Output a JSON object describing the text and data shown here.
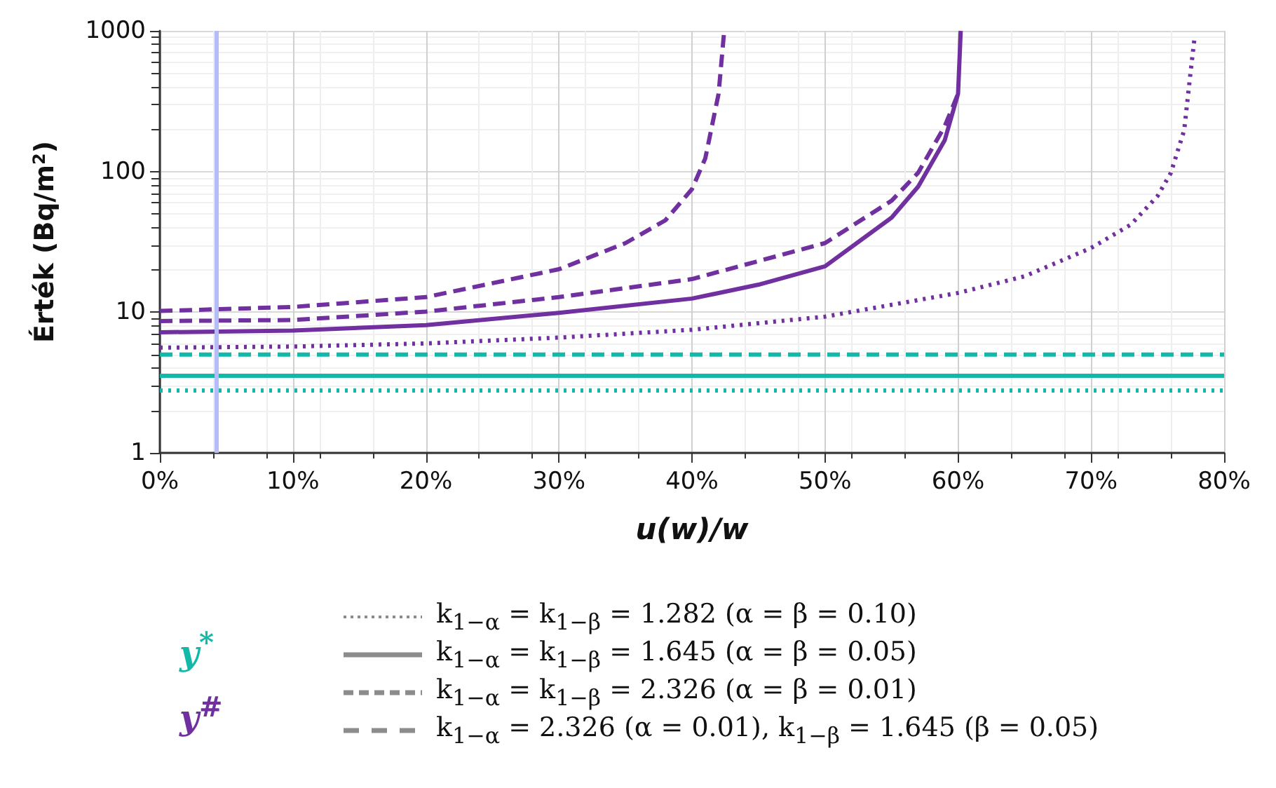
{
  "chart_data": {
    "type": "line",
    "xlabel": "u(w)/w",
    "ylabel": "Érték (Bq/m$^{2}$)",
    "xlim": [
      0,
      80
    ],
    "xticks": [
      {
        "value": 0,
        "label": "0%"
      },
      {
        "value": 10,
        "label": "10%"
      },
      {
        "value": 20,
        "label": "20%"
      },
      {
        "value": 30,
        "label": "30%"
      },
      {
        "value": 40,
        "label": "40%"
      },
      {
        "value": 50,
        "label": "50%"
      },
      {
        "value": 60,
        "label": "60%"
      },
      {
        "value": 70,
        "label": "70%"
      },
      {
        "value": 80,
        "label": "80%"
      }
    ],
    "ylim": [
      1,
      1000
    ],
    "yticks": [
      1,
      10,
      100,
      1000
    ],
    "log": "y",
    "grid": true,
    "marker": "none",
    "ref_lines": [
      {
        "axis": "x",
        "value": 4.2,
        "color": "#b4bdf8"
      }
    ],
    "annotations": [
      "y$^{*}$",
      "y$^{#}$",
      "k$_{1−α}$ = k$_{1−β}$ = 1.282 (α = β = 0.10)",
      "k$_{1−α}$ = k$_{1−β}$ = 1.645 (α = β = 0.05)",
      "k$_{1−α}$ = k$_{1−β}$ = 2.326 (α = β = 0.01)",
      "k$_{1−α}$ = 2.326 (α = 0.01), k$_{1−β}$ = 1.645 (β = 0.05)"
    ],
    "series": [
      {
        "color": "#12b8a8",
        "line_style": "dotted",
        "x": [
          0,
          80
        ],
        "values": [
          2.78,
          2.78
        ]
      },
      {
        "color": "#12b8a8",
        "line_style": "solid",
        "x": [
          0,
          80
        ],
        "values": [
          3.53,
          3.53
        ]
      },
      {
        "color": "#12b8a8",
        "line_style": "dashed",
        "x": [
          0,
          80
        ],
        "values": [
          5.0,
          5.0
        ]
      },
      {
        "color": "#7030a0",
        "line_style": "dotted",
        "x": [
          0,
          10,
          20,
          30,
          40,
          50,
          60,
          65,
          70,
          73,
          75,
          76,
          77,
          77.5,
          77.8
        ],
        "values": [
          5.6,
          5.7,
          6.0,
          6.6,
          7.5,
          9.3,
          13.7,
          18,
          28.6,
          42,
          67,
          98,
          197,
          530,
          930
        ]
      },
      {
        "color": "#7030a0",
        "line_style": "solid",
        "x": [
          0,
          10,
          20,
          30,
          40,
          45,
          50,
          55,
          57,
          59,
          60,
          60.2
        ],
        "values": [
          7.2,
          7.4,
          8.1,
          9.9,
          12.5,
          15.7,
          21.2,
          47,
          78,
          167,
          357,
          1000
        ]
      },
      {
        "color": "#7030a0",
        "line_style": "dashed",
        "x": [
          0,
          10,
          20,
          30,
          35,
          38,
          40,
          41,
          42,
          42.4
        ],
        "values": [
          10.2,
          10.9,
          12.8,
          20.2,
          31,
          45,
          75,
          124,
          357,
          950
        ]
      },
      {
        "color": "#7030a0",
        "line_style": "dashed",
        "x": [
          0,
          10,
          20,
          30,
          40,
          50,
          55,
          57,
          59,
          60
        ],
        "values": [
          8.65,
          8.8,
          10.1,
          12.8,
          17.2,
          31,
          62,
          98,
          210,
          357
        ]
      }
    ]
  }
}
